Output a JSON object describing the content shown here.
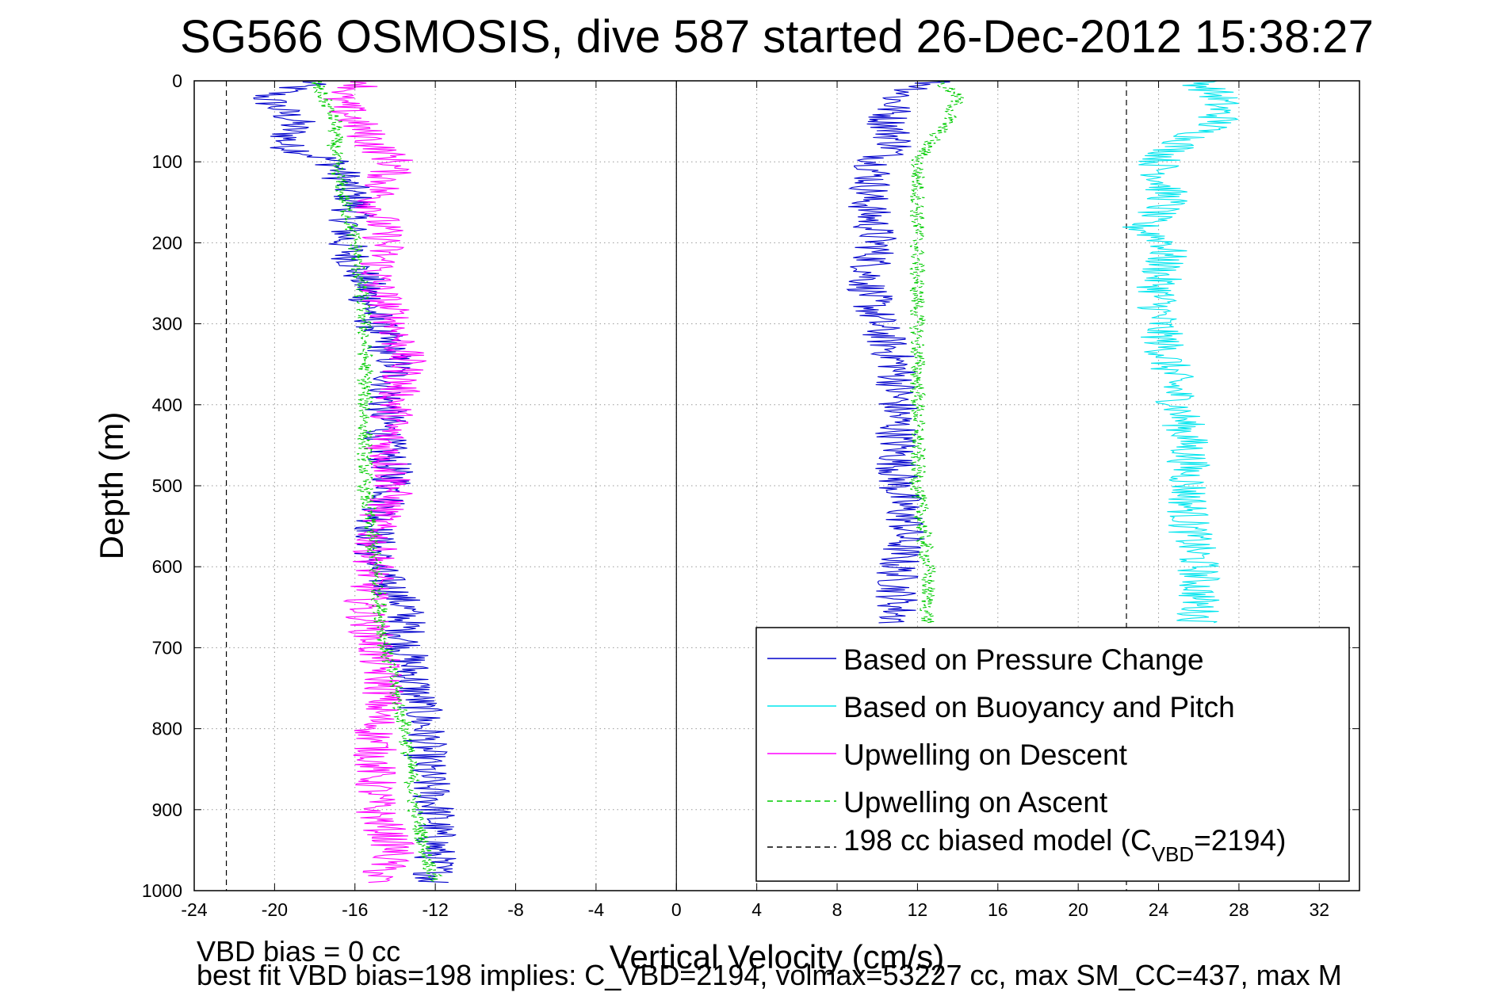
{
  "chart_data": {
    "type": "line",
    "title": "SG566 OSMOSIS, dive 587 started 26-Dec-2012 15:38:27",
    "xlabel": "Vertical Velocity (cm/s)",
    "ylabel": "Depth (m)",
    "xlim": [
      -24,
      34
    ],
    "ylim": [
      0,
      1000
    ],
    "y_reversed": true,
    "x_ticks": [
      -24,
      -20,
      -16,
      -12,
      -8,
      -4,
      0,
      4,
      8,
      12,
      16,
      20,
      24,
      28,
      32
    ],
    "y_ticks": [
      0,
      100,
      200,
      300,
      400,
      500,
      600,
      700,
      800,
      900,
      1000
    ],
    "grid": true,
    "legend_position": "bottom-right",
    "legend": [
      {
        "label": "Based on Pressure Change",
        "color": "#0000cc",
        "style": "solid"
      },
      {
        "label": "Based on Buoyancy and Pitch",
        "color": "#00e5ee",
        "style": "solid"
      },
      {
        "label": "Upwelling on Descent",
        "color": "#ff00ff",
        "style": "solid"
      },
      {
        "label": "Upwelling on Ascent",
        "color": "#00cc00",
        "style": "dashed"
      },
      {
        "label_main": "198 cc biased model (C",
        "label_sub": "VBD",
        "label_end": "=2194)",
        "color": "#000000",
        "style": "dashed"
      }
    ],
    "series": [
      {
        "name": "Based on Pressure Change",
        "color": "#0000cc",
        "branches": [
          {
            "depth": [
              0,
              20,
              50,
              80,
              100,
              150,
              200,
              250,
              300,
              350,
              400,
              450,
              500,
              550,
              600,
              650,
              700,
              750,
              800,
              850,
              900,
              950,
              990
            ],
            "values": [
              -18,
              -20.5,
              -19,
              -19.5,
              -17,
              -16,
              -16.5,
              -15.5,
              -15,
              -14,
              -14.5,
              -14.5,
              -14,
              -15,
              -15,
              -13.5,
              -13.5,
              -13,
              -12.5,
              -12.5,
              -12,
              -12,
              -12
            ]
          },
          {
            "depth": [
              0,
              20,
              50,
              80,
              100,
              150,
              200,
              250,
              300,
              350,
              400,
              450,
              500,
              550,
              600,
              650,
              670
            ],
            "values": [
              13,
              11,
              10.5,
              11,
              10,
              9.5,
              10,
              9.5,
              10,
              11,
              11,
              11,
              11,
              11.5,
              11,
              11,
              11
            ]
          }
        ]
      },
      {
        "name": "Based on Buoyancy and Pitch",
        "color": "#00e5ee",
        "depth": [
          0,
          20,
          50,
          80,
          100,
          150,
          180,
          200,
          250,
          300,
          350,
          400,
          450,
          500,
          550,
          600,
          650,
          670
        ],
        "values": [
          26,
          27,
          27,
          25,
          24,
          24.5,
          23,
          24.5,
          24,
          24,
          24.5,
          25,
          25.5,
          25.5,
          25.5,
          26,
          26,
          26
        ]
      },
      {
        "name": "Upwelling on Descent",
        "color": "#ff00ff",
        "depth": [
          0,
          20,
          50,
          80,
          100,
          150,
          200,
          250,
          300,
          350,
          400,
          450,
          500,
          550,
          600,
          650,
          700,
          750,
          800,
          850,
          900,
          950,
          990
        ],
        "values": [
          -15,
          -17,
          -16,
          -15,
          -14,
          -15,
          -14.5,
          -15,
          -14,
          -13.5,
          -14,
          -14.5,
          -14,
          -15,
          -15,
          -15.5,
          -15,
          -14.5,
          -15,
          -15,
          -15,
          -14,
          -15
        ]
      },
      {
        "name": "Upwelling on Ascent",
        "color": "#00cc00",
        "branches": [
          {
            "depth": [
              0,
              50,
              100,
              150,
              200,
              300,
              400,
              500,
              600,
              700,
              800,
              900,
              950,
              990
            ],
            "values": [
              -18,
              -17,
              -17,
              -16.5,
              -16,
              -15.5,
              -15.5,
              -15.5,
              -15,
              -14.5,
              -13.5,
              -13,
              -12.5,
              -12
            ]
          },
          {
            "depth": [
              0,
              20,
              50,
              80,
              100,
              150,
              200,
              300,
              400,
              500,
              600,
              670
            ],
            "values": [
              13,
              14,
              13.5,
              12.5,
              12,
              12,
              12,
              12,
              12,
              12,
              12.5,
              12.5
            ]
          }
        ]
      },
      {
        "name": "198 cc biased model (CVBD=2194)",
        "color": "#000000",
        "vertical_lines_x": [
          -22.4,
          22.4
        ]
      }
    ]
  },
  "footer": {
    "line1": "VBD bias = 0 cc",
    "line2": "best fit VBD bias=198 implies: C_VBD=2194, volmax=53227 cc, max SM_CC=437, max M"
  }
}
